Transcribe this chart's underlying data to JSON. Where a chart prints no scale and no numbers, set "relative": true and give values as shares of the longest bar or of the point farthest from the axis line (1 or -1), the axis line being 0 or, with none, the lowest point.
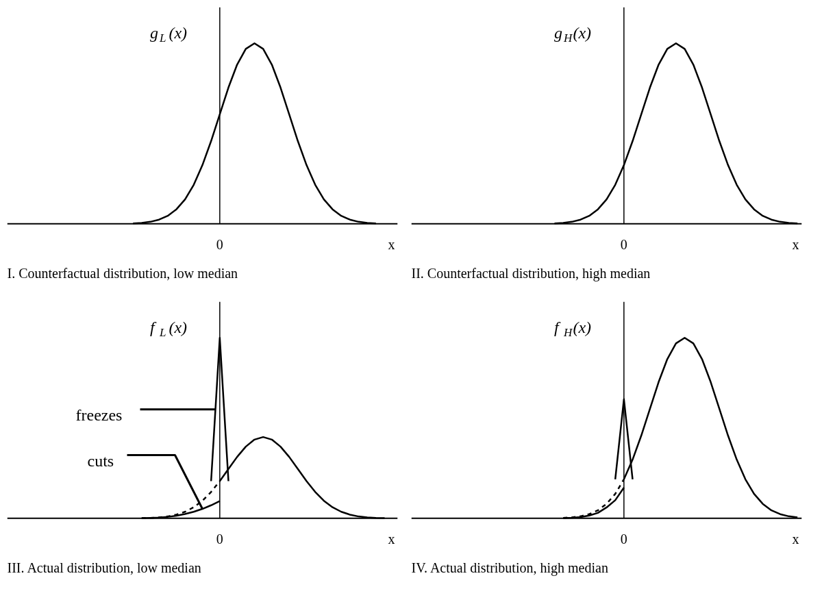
{
  "chart_data": [
    {
      "type": "line",
      "title": "I. Counterfactual distribution, low median",
      "xlabel": "x",
      "ylabel": "g$_{L}$(x)",
      "relative": true,
      "annotations": [
        "0"
      ],
      "categories": [
        null,
        null,
        null,
        null,
        null,
        null,
        null,
        null,
        null,
        null,
        null,
        null,
        null,
        null,
        null,
        null,
        null,
        null,
        null,
        null,
        null,
        null,
        null,
        null,
        null,
        null,
        null,
        null,
        null,
        null,
        null,
        null,
        null,
        null,
        null,
        null,
        null,
        null,
        null,
        null,
        null,
        null,
        null,
        null,
        null
      ],
      "series": [
        {
          "color": "#000000",
          "line_style": "solid",
          "values": [
            null,
            null,
            null,
            null,
            null,
            null,
            null,
            null,
            null,
            null,
            null,
            null,
            null,
            null,
            0.002,
            0.005,
            0.011,
            0.023,
            0.044,
            0.08,
            0.135,
            0.216,
            0.325,
            0.458,
            0.607,
            0.755,
            0.882,
            0.969,
            1,
            0.969,
            0.882,
            0.755,
            0.607,
            0.458,
            0.325,
            0.216,
            0.135,
            0.08,
            0.044,
            0.023,
            0.011,
            0.005,
            0.002,
            null,
            null
          ]
        }
      ]
    },
    {
      "type": "line",
      "title": "II. Counterfactual distribution, high median",
      "xlabel": "x",
      "ylabel": "g$_{H}$(x)",
      "relative": true,
      "annotations": [
        "0"
      ],
      "categories": [
        null,
        null,
        null,
        null,
        null,
        null,
        null,
        null,
        null,
        null,
        null,
        null,
        null,
        null,
        null,
        null,
        null,
        null,
        null,
        null,
        null,
        null,
        null,
        null,
        null,
        null,
        null,
        null,
        null,
        null,
        null,
        null,
        null,
        null,
        null,
        null,
        null,
        null,
        null,
        null,
        null,
        null,
        null,
        null,
        null
      ],
      "series": [
        {
          "color": "#000000",
          "line_style": "solid",
          "values": [
            null,
            null,
            null,
            null,
            null,
            null,
            null,
            null,
            null,
            null,
            null,
            null,
            null,
            null,
            null,
            null,
            0.002,
            0.005,
            0.011,
            0.023,
            0.044,
            0.08,
            0.135,
            0.216,
            0.325,
            0.458,
            0.607,
            0.755,
            0.882,
            0.969,
            1,
            0.969,
            0.882,
            0.755,
            0.607,
            0.458,
            0.325,
            0.216,
            0.135,
            0.08,
            0.044,
            0.023,
            0.011,
            0.005,
            0.002
          ]
        }
      ]
    },
    {
      "type": "line",
      "title": "III. Actual distribution, low median",
      "xlabel": "x",
      "ylabel": "f$_{L}$(x)",
      "relative": true,
      "categories": [
        null,
        null,
        null,
        null,
        null,
        null,
        null,
        null,
        null,
        null,
        null,
        null,
        null,
        null,
        null,
        null,
        null,
        null,
        null,
        null,
        null,
        null,
        null,
        null,
        null,
        null,
        null,
        null,
        null,
        null,
        null,
        null,
        null,
        null,
        null,
        null,
        null,
        null,
        null,
        null,
        null,
        null,
        null,
        null,
        null
      ],
      "annotations": [
        "0",
        "freezes",
        "cuts"
      ],
      "series": [
        {
          "color": "#000000",
          "line_style": "dashed",
          "values": [
            null,
            null,
            null,
            null,
            null,
            null,
            null,
            null,
            null,
            null,
            null,
            null,
            null,
            null,
            null,
            0.001,
            0.002,
            0.005,
            0.01,
            0.02,
            0.036,
            0.061,
            0.097,
            0.146,
            0.206,
            null,
            null,
            null,
            null,
            null,
            null,
            null,
            null,
            null,
            null,
            null,
            null,
            null,
            null,
            null,
            null,
            null,
            null,
            null,
            null
          ]
        },
        {
          "color": "#000000",
          "line_style": "solid",
          "values": [
            null,
            null,
            null,
            null,
            null,
            null,
            null,
            null,
            null,
            null,
            null,
            null,
            null,
            null,
            null,
            null,
            null,
            null,
            null,
            null,
            null,
            null,
            null,
            null,
            0.206,
            0.273,
            0.34,
            0.397,
            0.436,
            0.45,
            0.436,
            0.397,
            0.34,
            0.273,
            0.206,
            0.146,
            0.097,
            0.061,
            0.036,
            0.02,
            0.01,
            0.005,
            0.002,
            0.001,
            null
          ]
        },
        {
          "color": "#000000",
          "line_style": "solid",
          "values": [
            null,
            null,
            null,
            null,
            null,
            null,
            null,
            null,
            null,
            null,
            null,
            null,
            null,
            null,
            null,
            0.001,
            0.002,
            0.004,
            0.008,
            0.014,
            0.024,
            0.036,
            0.052,
            0.072,
            0.095,
            null,
            null,
            null,
            null,
            null,
            null,
            null,
            null,
            null,
            null,
            null,
            null,
            null,
            null,
            null,
            null,
            null,
            null,
            null,
            null
          ]
        },
        {
          "color": "#000000",
          "line_style": "solid",
          "values": [
            null,
            null,
            null,
            null,
            null,
            null,
            null,
            null,
            null,
            null,
            null,
            null,
            null,
            null,
            null,
            null,
            null,
            null,
            null,
            null,
            null,
            null,
            null,
            0.206,
            1,
            0.206,
            null,
            null,
            null,
            null,
            null,
            null,
            null,
            null,
            null,
            null,
            null,
            null,
            null,
            null,
            null,
            null,
            null,
            null,
            null
          ]
        }
      ]
    },
    {
      "type": "line",
      "title": "IV. Actual distribution, high median",
      "xlabel": "x",
      "ylabel": "f$_{H}$(x)",
      "relative": true,
      "annotations": [
        "0"
      ],
      "categories": [
        null,
        null,
        null,
        null,
        null,
        null,
        null,
        null,
        null,
        null,
        null,
        null,
        null,
        null,
        null,
        null,
        null,
        null,
        null,
        null,
        null,
        null,
        null,
        null,
        null,
        null,
        null,
        null,
        null,
        null,
        null,
        null,
        null,
        null,
        null,
        null,
        null,
        null,
        null,
        null,
        null,
        null,
        null,
        null,
        null
      ],
      "series": [
        {
          "color": "#000000",
          "line_style": "dashed",
          "values": [
            null,
            null,
            null,
            null,
            null,
            null,
            null,
            null,
            null,
            null,
            null,
            null,
            null,
            null,
            null,
            null,
            null,
            0.002,
            0.005,
            0.011,
            0.023,
            0.044,
            0.08,
            0.135,
            0.216,
            null,
            null,
            null,
            null,
            null,
            null,
            null,
            null,
            null,
            null,
            null,
            null,
            null,
            null,
            null,
            null,
            null,
            null,
            null,
            null
          ]
        },
        {
          "color": "#000000",
          "line_style": "solid",
          "values": [
            null,
            null,
            null,
            null,
            null,
            null,
            null,
            null,
            null,
            null,
            null,
            null,
            null,
            null,
            null,
            null,
            null,
            null,
            null,
            null,
            null,
            null,
            null,
            null,
            0.216,
            0.325,
            0.458,
            0.607,
            0.755,
            0.882,
            0.969,
            1,
            0.969,
            0.882,
            0.755,
            0.607,
            0.458,
            0.325,
            0.216,
            0.135,
            0.08,
            0.044,
            0.023,
            0.011,
            0.005
          ]
        },
        {
          "color": "#000000",
          "line_style": "solid",
          "values": [
            null,
            null,
            null,
            null,
            null,
            null,
            null,
            null,
            null,
            null,
            null,
            null,
            null,
            null,
            null,
            null,
            null,
            0.001,
            0.003,
            0.007,
            0.015,
            0.03,
            0.06,
            0.1,
            0.17,
            null,
            null,
            null,
            null,
            null,
            null,
            null,
            null,
            null,
            null,
            null,
            null,
            null,
            null,
            null,
            null,
            null,
            null,
            null,
            null
          ]
        },
        {
          "color": "#000000",
          "line_style": "solid",
          "values": [
            null,
            null,
            null,
            null,
            null,
            null,
            null,
            null,
            null,
            null,
            null,
            null,
            null,
            null,
            null,
            null,
            null,
            null,
            null,
            null,
            null,
            null,
            null,
            0.216,
            0.66,
            0.216,
            null,
            null,
            null,
            null,
            null,
            null,
            null,
            null,
            null,
            null,
            null,
            null,
            null,
            null,
            null,
            null,
            null,
            null,
            null
          ]
        }
      ]
    }
  ]
}
